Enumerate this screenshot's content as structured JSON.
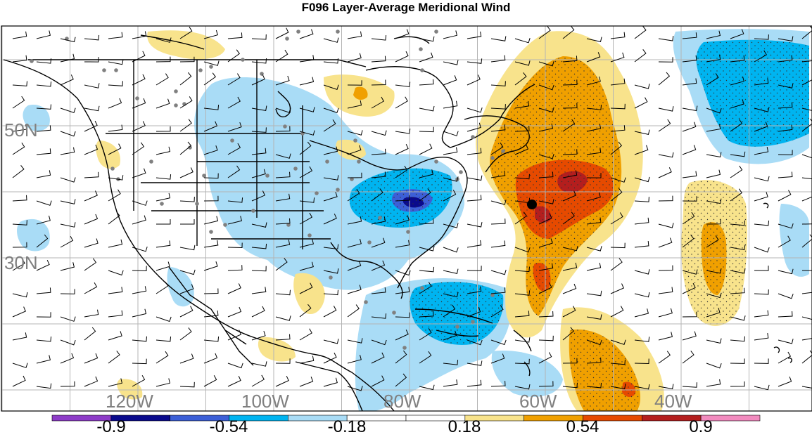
{
  "title": "F096 Layer-Average Meridional Wind",
  "map": {
    "longitude_labels": [
      "120W",
      "100W",
      "80W",
      "60W",
      "40W"
    ],
    "latitude_labels": [
      "50N",
      "30N"
    ],
    "marker": "black-dot-station"
  },
  "colorbar": {
    "tick_labels": [
      "-0.9",
      "-0.54",
      "-0.18",
      "0.18",
      "0.54",
      "0.9"
    ],
    "bins": [
      "#8e3cc8",
      "#0a0a8c",
      "#3c5fd7",
      "#00b4f0",
      "#a9dcf6",
      "#ffffff",
      "#ffffff",
      "#f8e38c",
      "#f0a000",
      "#e64a00",
      "#b41e1e",
      "#f28bbf"
    ]
  },
  "colors": {
    "land_outline": "#000000",
    "grid": "#b4b4b4",
    "grid_label": "#808080",
    "station_dot": "#808080"
  }
}
